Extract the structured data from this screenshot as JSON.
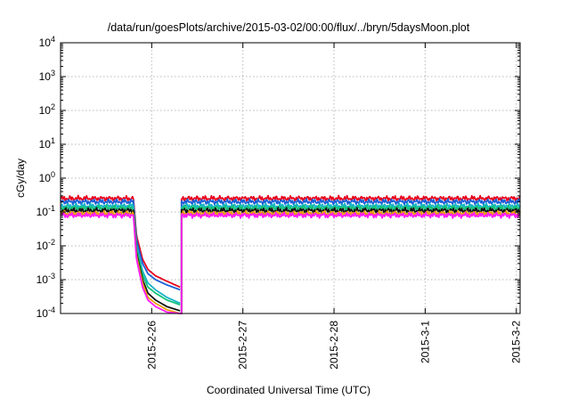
{
  "chart_data": {
    "type": "line",
    "title": "/data/run/goesPlots/archive/2015-03-02/00:00/flux/../bryn/5daysMoon.plot",
    "xlabel": "Coordinated Universal Time (UTC)",
    "ylabel": "cGy/day",
    "yscale": "log",
    "ylim": [
      0.0001,
      10000
    ],
    "xlim": [
      "2015-02-25 00:00",
      "2015-03-02 01:00"
    ],
    "grid": true,
    "y_ticks": [
      {
        "value": 0.0001,
        "base": "10",
        "exp": "-4"
      },
      {
        "value": 0.001,
        "base": "10",
        "exp": "-3"
      },
      {
        "value": 0.01,
        "base": "10",
        "exp": "-2"
      },
      {
        "value": 0.1,
        "base": "10",
        "exp": "-1"
      },
      {
        "value": 1,
        "base": "10",
        "exp": "0"
      },
      {
        "value": 10,
        "base": "10",
        "exp": "1"
      },
      {
        "value": 100,
        "base": "10",
        "exp": "2"
      },
      {
        "value": 1000,
        "base": "10",
        "exp": "3"
      },
      {
        "value": 10000,
        "base": "10",
        "exp": "4"
      }
    ],
    "x_ticks": [
      {
        "t": "2015-02-26 00:00",
        "label": "2015-2-26"
      },
      {
        "t": "2015-02-27 00:00",
        "label": "2015-2-27"
      },
      {
        "t": "2015-02-28 00:00",
        "label": "2015-2-28"
      },
      {
        "t": "2015-03-01 00:00",
        "label": "2015-3-1"
      },
      {
        "t": "2015-03-02 00:00",
        "label": "2015-3-2"
      }
    ],
    "gap": {
      "start": "2015-02-26 07:30",
      "end": "2015-02-26 07:45"
    },
    "series": [
      {
        "color": "#e8001c",
        "x": [
          "2015-02-25 00:00",
          "2015-02-25 19:12",
          "2015-02-25 20:00",
          "2015-02-25 21:36",
          "2015-02-25 23:00",
          "2015-02-26 01:00",
          "2015-02-26 04:00",
          "2015-02-26 07:30",
          "2015-02-26 07:45",
          "2015-03-02 01:00"
        ],
        "y": [
          0.25,
          0.25,
          0.02,
          0.004,
          0.002,
          0.0013,
          0.0009,
          0.0006,
          0.25,
          0.25
        ]
      },
      {
        "color": "#1a5fd6",
        "x": [
          "2015-02-25 00:00",
          "2015-02-25 19:12",
          "2015-02-25 20:00",
          "2015-02-25 21:36",
          "2015-02-25 23:00",
          "2015-02-26 01:00",
          "2015-02-26 04:00",
          "2015-02-26 07:30",
          "2015-02-26 07:45",
          "2015-03-02 01:00"
        ],
        "y": [
          0.2,
          0.2,
          0.015,
          0.003,
          0.0015,
          0.001,
          0.0007,
          0.0005,
          0.2,
          0.2
        ]
      },
      {
        "color": "#17b3c9",
        "x": [
          "2015-02-25 00:00",
          "2015-02-25 19:12",
          "2015-02-25 20:00",
          "2015-02-25 21:36",
          "2015-02-25 23:00",
          "2015-02-26 01:00",
          "2015-02-26 04:00",
          "2015-02-26 07:30",
          "2015-02-26 07:45",
          "2015-03-02 01:00"
        ],
        "y": [
          0.15,
          0.15,
          0.01,
          0.0018,
          0.0008,
          0.0005,
          0.0003,
          0.0002,
          0.15,
          0.15
        ]
      },
      {
        "color": "#12c27a",
        "x": [
          "2015-02-25 00:00",
          "2015-02-25 19:12",
          "2015-02-25 20:00",
          "2015-02-25 21:36",
          "2015-02-25 23:00",
          "2015-02-26 01:00",
          "2015-02-26 04:00",
          "2015-02-26 07:30",
          "2015-02-26 07:45",
          "2015-03-02 01:00"
        ],
        "y": [
          0.13,
          0.13,
          0.008,
          0.0014,
          0.0006,
          0.0004,
          0.00025,
          0.00018,
          0.13,
          0.13
        ]
      },
      {
        "color": "#111111",
        "x": [
          "2015-02-25 00:00",
          "2015-02-25 19:12",
          "2015-02-25 20:00",
          "2015-02-25 21:36",
          "2015-02-25 23:00",
          "2015-02-26 01:00",
          "2015-02-26 04:00",
          "2015-02-26 07:30",
          "2015-02-26 07:45",
          "2015-03-02 01:00"
        ],
        "y": [
          0.11,
          0.11,
          0.006,
          0.001,
          0.0004,
          0.00025,
          0.00016,
          0.00012,
          0.11,
          0.11
        ]
      },
      {
        "color": "#e8a000",
        "x": [
          "2015-02-25 00:00",
          "2015-02-25 19:12",
          "2015-02-25 20:00",
          "2015-02-25 21:36",
          "2015-02-25 23:00",
          "2015-02-26 01:00",
          "2015-02-26 04:00",
          "2015-02-26 07:30",
          "2015-02-26 07:45",
          "2015-03-02 01:00"
        ],
        "y": [
          0.09,
          0.09,
          0.005,
          0.0008,
          0.0003,
          0.0002,
          0.00013,
          0.0001,
          0.09,
          0.09
        ]
      },
      {
        "color": "#ff1aff",
        "x": [
          "2015-02-25 00:00",
          "2015-02-25 19:12",
          "2015-02-25 20:00",
          "2015-02-25 21:36",
          "2015-02-25 23:00",
          "2015-02-26 01:00",
          "2015-02-26 04:00",
          "2015-02-26 07:30",
          "2015-02-26 07:45",
          "2015-03-02 01:00"
        ],
        "y": [
          0.08,
          0.08,
          0.004,
          0.0006,
          0.00025,
          0.00016,
          0.00011,
          0.0001,
          0.08,
          0.08
        ]
      }
    ]
  }
}
